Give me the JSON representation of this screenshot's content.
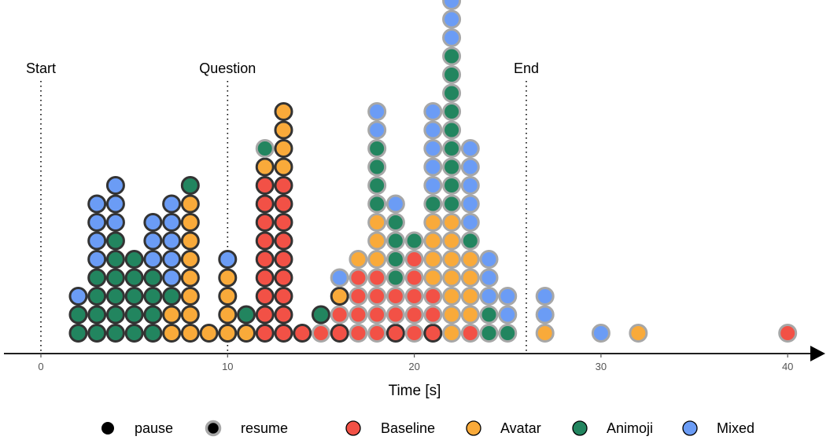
{
  "chart_data": {
    "type": "scatter",
    "subtype": "stacked-dot-histogram",
    "xlabel": "Time [s]",
    "xlim": [
      -2,
      41.5
    ],
    "xticks": [
      "0",
      "10",
      "20",
      "30",
      "40"
    ],
    "grid": false,
    "legend_position": "bottom",
    "event_markers": [
      {
        "label": "Start",
        "x": 0
      },
      {
        "label": "Question",
        "x": 10
      },
      {
        "label": "End",
        "x": 26
      }
    ],
    "colors": {
      "Baseline": "#f25146",
      "Avatar": "#f9aa3a",
      "Animoji": "#22855f",
      "Mixed": "#6b9cf5",
      "pause_border": "#333333",
      "resume_border": "#a7a7a7"
    },
    "legend": {
      "types": [
        {
          "label": "pause",
          "kind": "pause"
        },
        {
          "label": "resume",
          "kind": "resume"
        }
      ],
      "conditions": [
        {
          "label": "Baseline",
          "key": "Baseline"
        },
        {
          "label": "Avatar",
          "key": "Avatar"
        },
        {
          "label": "Animoji",
          "key": "Animoji"
        },
        {
          "label": "Mixed",
          "key": "Mixed"
        }
      ]
    },
    "stacks": [
      {
        "x": 2,
        "dots": [
          [
            "A",
            "pause"
          ],
          [
            "A",
            "pause"
          ],
          [
            "M",
            "pause"
          ]
        ]
      },
      {
        "x": 3,
        "dots": [
          [
            "A",
            "pause"
          ],
          [
            "A",
            "pause"
          ],
          [
            "A",
            "pause"
          ],
          [
            "A",
            "pause"
          ],
          [
            "M",
            "pause"
          ],
          [
            "M",
            "pause"
          ],
          [
            "M",
            "pause"
          ],
          [
            "M",
            "pause"
          ]
        ]
      },
      {
        "x": 4,
        "dots": [
          [
            "A",
            "pause"
          ],
          [
            "A",
            "pause"
          ],
          [
            "A",
            "pause"
          ],
          [
            "A",
            "pause"
          ],
          [
            "A",
            "pause"
          ],
          [
            "A",
            "pause"
          ],
          [
            "M",
            "pause"
          ],
          [
            "M",
            "pause"
          ],
          [
            "M",
            "pause"
          ]
        ]
      },
      {
        "x": 5,
        "dots": [
          [
            "A",
            "pause"
          ],
          [
            "A",
            "pause"
          ],
          [
            "A",
            "pause"
          ],
          [
            "A",
            "pause"
          ],
          [
            "A",
            "pause"
          ]
        ]
      },
      {
        "x": 6,
        "dots": [
          [
            "A",
            "pause"
          ],
          [
            "A",
            "pause"
          ],
          [
            "A",
            "pause"
          ],
          [
            "A",
            "pause"
          ],
          [
            "M",
            "pause"
          ],
          [
            "M",
            "pause"
          ],
          [
            "M",
            "pause"
          ]
        ]
      },
      {
        "x": 7,
        "dots": [
          [
            "V",
            "pause"
          ],
          [
            "V",
            "pause"
          ],
          [
            "A",
            "pause"
          ],
          [
            "M",
            "pause"
          ],
          [
            "M",
            "pause"
          ],
          [
            "M",
            "pause"
          ],
          [
            "M",
            "pause"
          ],
          [
            "M",
            "pause"
          ]
        ]
      },
      {
        "x": 8,
        "dots": [
          [
            "V",
            "pause"
          ],
          [
            "V",
            "pause"
          ],
          [
            "V",
            "pause"
          ],
          [
            "V",
            "pause"
          ],
          [
            "V",
            "pause"
          ],
          [
            "V",
            "pause"
          ],
          [
            "V",
            "pause"
          ],
          [
            "V",
            "pause"
          ],
          [
            "A",
            "pause"
          ]
        ]
      },
      {
        "x": 9,
        "dots": [
          [
            "V",
            "pause"
          ]
        ]
      },
      {
        "x": 10,
        "dots": [
          [
            "V",
            "pause"
          ],
          [
            "V",
            "pause"
          ],
          [
            "V",
            "pause"
          ],
          [
            "V",
            "pause"
          ],
          [
            "M",
            "pause"
          ]
        ]
      },
      {
        "x": 11,
        "dots": [
          [
            "V",
            "pause"
          ],
          [
            "A",
            "pause"
          ]
        ]
      },
      {
        "x": 12,
        "dots": [
          [
            "B",
            "pause"
          ],
          [
            "B",
            "pause"
          ],
          [
            "B",
            "pause"
          ],
          [
            "B",
            "pause"
          ],
          [
            "B",
            "pause"
          ],
          [
            "B",
            "pause"
          ],
          [
            "B",
            "pause"
          ],
          [
            "B",
            "pause"
          ],
          [
            "B",
            "pause"
          ],
          [
            "V",
            "pause"
          ],
          [
            "A",
            "resume"
          ]
        ]
      },
      {
        "x": 13,
        "dots": [
          [
            "B",
            "pause"
          ],
          [
            "B",
            "pause"
          ],
          [
            "B",
            "pause"
          ],
          [
            "B",
            "pause"
          ],
          [
            "B",
            "pause"
          ],
          [
            "B",
            "pause"
          ],
          [
            "B",
            "pause"
          ],
          [
            "B",
            "pause"
          ],
          [
            "B",
            "pause"
          ],
          [
            "V",
            "pause"
          ],
          [
            "V",
            "pause"
          ],
          [
            "V",
            "pause"
          ],
          [
            "V",
            "pause"
          ]
        ]
      },
      {
        "x": 14,
        "dots": [
          [
            "B",
            "pause"
          ]
        ]
      },
      {
        "x": 15,
        "dots": [
          [
            "B",
            "resume"
          ],
          [
            "A",
            "pause"
          ]
        ]
      },
      {
        "x": 16,
        "dots": [
          [
            "B",
            "pause"
          ],
          [
            "B",
            "resume"
          ],
          [
            "V",
            "pause"
          ],
          [
            "M",
            "resume"
          ]
        ]
      },
      {
        "x": 17,
        "dots": [
          [
            "B",
            "resume"
          ],
          [
            "B",
            "resume"
          ],
          [
            "B",
            "resume"
          ],
          [
            "B",
            "resume"
          ],
          [
            "V",
            "resume"
          ]
        ]
      },
      {
        "x": 18,
        "dots": [
          [
            "B",
            "resume"
          ],
          [
            "B",
            "resume"
          ],
          [
            "B",
            "resume"
          ],
          [
            "B",
            "resume"
          ],
          [
            "V",
            "resume"
          ],
          [
            "V",
            "resume"
          ],
          [
            "V",
            "resume"
          ],
          [
            "A",
            "resume"
          ],
          [
            "A",
            "resume"
          ],
          [
            "A",
            "resume"
          ],
          [
            "A",
            "resume"
          ],
          [
            "M",
            "resume"
          ],
          [
            "M",
            "resume"
          ]
        ]
      },
      {
        "x": 19,
        "dots": [
          [
            "B",
            "pause"
          ],
          [
            "B",
            "resume"
          ],
          [
            "B",
            "resume"
          ],
          [
            "A",
            "resume"
          ],
          [
            "A",
            "resume"
          ],
          [
            "A",
            "resume"
          ],
          [
            "A",
            "resume"
          ],
          [
            "M",
            "resume"
          ]
        ]
      },
      {
        "x": 20,
        "dots": [
          [
            "B",
            "resume"
          ],
          [
            "B",
            "resume"
          ],
          [
            "B",
            "resume"
          ],
          [
            "B",
            "resume"
          ],
          [
            "B",
            "resume"
          ],
          [
            "A",
            "resume"
          ]
        ]
      },
      {
        "x": 21,
        "dots": [
          [
            "B",
            "pause"
          ],
          [
            "B",
            "resume"
          ],
          [
            "B",
            "resume"
          ],
          [
            "V",
            "resume"
          ],
          [
            "V",
            "resume"
          ],
          [
            "V",
            "resume"
          ],
          [
            "V",
            "resume"
          ],
          [
            "A",
            "resume"
          ],
          [
            "M",
            "resume"
          ],
          [
            "M",
            "resume"
          ],
          [
            "M",
            "resume"
          ],
          [
            "M",
            "resume"
          ],
          [
            "M",
            "resume"
          ]
        ]
      },
      {
        "x": 22,
        "dots": [
          [
            "V",
            "resume"
          ],
          [
            "V",
            "resume"
          ],
          [
            "V",
            "resume"
          ],
          [
            "V",
            "resume"
          ],
          [
            "V",
            "resume"
          ],
          [
            "V",
            "resume"
          ],
          [
            "V",
            "resume"
          ],
          [
            "A",
            "resume"
          ],
          [
            "A",
            "resume"
          ],
          [
            "A",
            "resume"
          ],
          [
            "A",
            "resume"
          ],
          [
            "A",
            "resume"
          ],
          [
            "A",
            "resume"
          ],
          [
            "A",
            "resume"
          ],
          [
            "A",
            "resume"
          ],
          [
            "A",
            "resume"
          ],
          [
            "M",
            "resume"
          ],
          [
            "M",
            "resume"
          ],
          [
            "M",
            "resume"
          ]
        ]
      },
      {
        "x": 23,
        "dots": [
          [
            "B",
            "resume"
          ],
          [
            "V",
            "resume"
          ],
          [
            "V",
            "resume"
          ],
          [
            "V",
            "resume"
          ],
          [
            "V",
            "resume"
          ],
          [
            "A",
            "resume"
          ],
          [
            "M",
            "resume"
          ],
          [
            "M",
            "resume"
          ],
          [
            "M",
            "resume"
          ],
          [
            "M",
            "resume"
          ],
          [
            "M",
            "resume"
          ]
        ]
      },
      {
        "x": 24,
        "dots": [
          [
            "A",
            "resume"
          ],
          [
            "A",
            "resume"
          ],
          [
            "M",
            "resume"
          ],
          [
            "M",
            "resume"
          ],
          [
            "M",
            "resume"
          ]
        ]
      },
      {
        "x": 25,
        "dots": [
          [
            "A",
            "resume"
          ],
          [
            "M",
            "resume"
          ],
          [
            "M",
            "resume"
          ]
        ]
      },
      {
        "x": 27,
        "dots": [
          [
            "V",
            "resume"
          ],
          [
            "M",
            "resume"
          ],
          [
            "M",
            "resume"
          ]
        ]
      },
      {
        "x": 30,
        "dots": [
          [
            "M",
            "resume"
          ]
        ]
      },
      {
        "x": 32,
        "dots": [
          [
            "V",
            "resume"
          ]
        ]
      },
      {
        "x": 40,
        "dots": [
          [
            "B",
            "resume"
          ]
        ]
      }
    ]
  }
}
